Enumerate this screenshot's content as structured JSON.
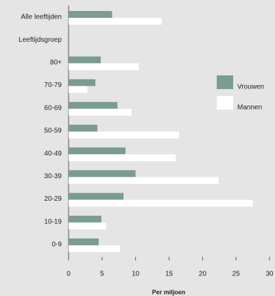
{
  "chart_data": {
    "type": "hbar",
    "categories": [
      "Alle leeftijden",
      "Leeftijdsgroep",
      "80+",
      "70-79",
      "60-69",
      "50-59",
      "40-49",
      "30-39",
      "20-29",
      "10-19",
      "0-9"
    ],
    "series": [
      {
        "name": "Vrouwen",
        "color": "#7b9d8f",
        "values": [
          6.5,
          null,
          4.8,
          4.0,
          7.3,
          4.3,
          8.5,
          10.0,
          8.2,
          4.9,
          4.5
        ]
      },
      {
        "name": "Mannen",
        "color": "#ffffff",
        "values": [
          13.9,
          null,
          10.5,
          2.8,
          9.4,
          16.5,
          16.0,
          22.4,
          27.5,
          5.6,
          7.7
        ]
      }
    ],
    "xlabel": "Per miljoen",
    "xlim": [
      0,
      30
    ],
    "xticks": [
      0,
      5,
      10,
      15,
      20,
      25,
      30
    ],
    "legend": "right"
  }
}
